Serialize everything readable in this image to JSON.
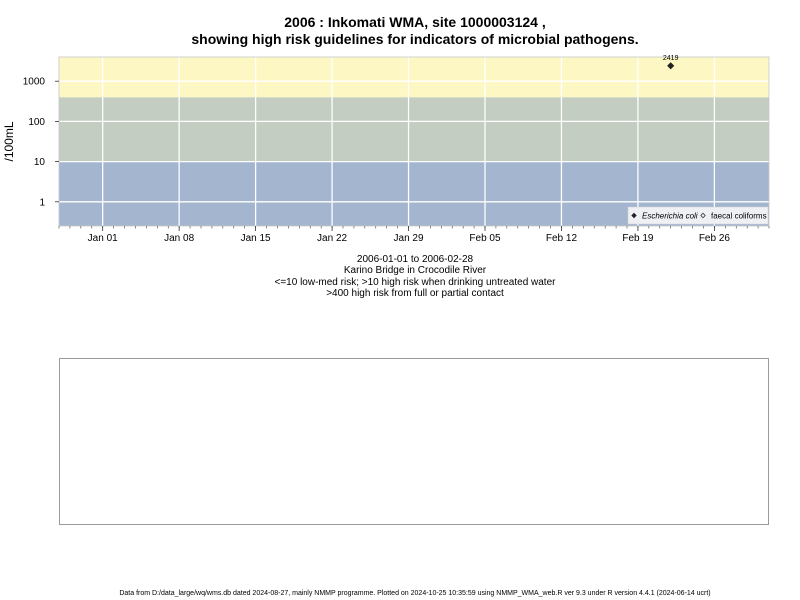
{
  "title_line1": "2006 : Inkomati WMA, site 1000003124 ,",
  "title_line2": "showing high risk guidelines for indicators of microbial pathogens.",
  "subtitle": [
    "2006-01-01 to 2006-02-28",
    "Karino Bridge in Crocodile River",
    "<=10 low-med risk; >10 high risk when drinking untreated water",
    ">400 high risk from full or partial contact"
  ],
  "footer": "Data from D:/data_large/wq/wms.db dated 2024-08-27, mainly NMMP programme. Plotted on 2024-10-25 10:35:59 using NMMP_WMA_web.R ver 9.3 under R version 4.4.1 (2024-06-14 ucrt)",
  "chart_data": {
    "type": "scatter",
    "ylabel": "/100mL",
    "y_scale": "log10",
    "ylim": [
      0.25,
      4000
    ],
    "xlim": [
      "2005-12-28",
      "2006-03-03"
    ],
    "y_ticks": [
      {
        "value": 1,
        "label": "1"
      },
      {
        "value": 10,
        "label": "10"
      },
      {
        "value": 100,
        "label": "100"
      },
      {
        "value": 1000,
        "label": "1000"
      }
    ],
    "x_ticks": [
      {
        "date": "2006-01-01",
        "label": "Jan 01"
      },
      {
        "date": "2006-01-08",
        "label": "Jan 08"
      },
      {
        "date": "2006-01-15",
        "label": "Jan 15"
      },
      {
        "date": "2006-01-22",
        "label": "Jan 22"
      },
      {
        "date": "2006-01-29",
        "label": "Jan 29"
      },
      {
        "date": "2006-02-05",
        "label": "Feb 05"
      },
      {
        "date": "2006-02-12",
        "label": "Feb 12"
      },
      {
        "date": "2006-02-19",
        "label": "Feb 19"
      },
      {
        "date": "2006-02-26",
        "label": "Feb 26"
      }
    ],
    "risk_bands": [
      {
        "from": 0.25,
        "to": 10,
        "color": "#a3b5cf"
      },
      {
        "from": 10,
        "to": 400,
        "color": "#c3cdc1"
      },
      {
        "from": 400,
        "to": 4000,
        "color": "#fdf7c4"
      }
    ],
    "grid": true,
    "series": [
      {
        "name": "Escherichia coli",
        "marker": "filled-diamond",
        "points": [
          {
            "x": "2006-02-22",
            "y": 2419,
            "label": "2419"
          }
        ]
      },
      {
        "name": "faecal coliforms",
        "marker": "open-diamond",
        "points": []
      }
    ],
    "legend_position": "bottom-right"
  }
}
